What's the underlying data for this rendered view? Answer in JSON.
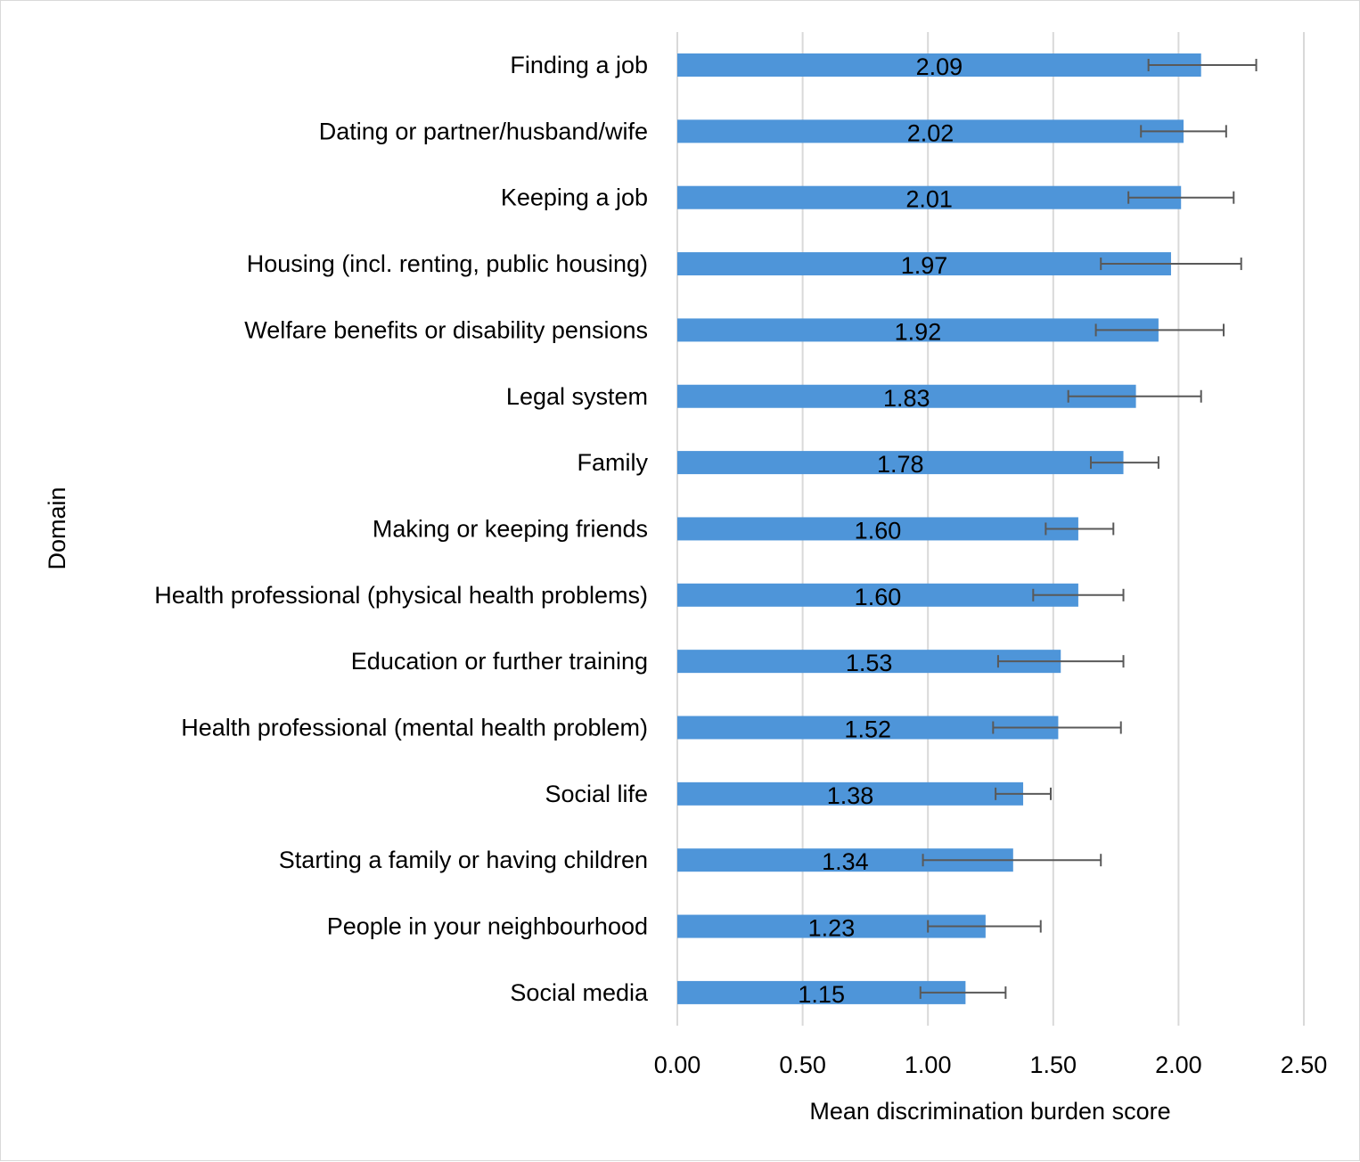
{
  "chart_data": {
    "type": "bar",
    "orientation": "horizontal",
    "title": "",
    "xlabel": "Mean discrimination burden score",
    "ylabel": "Domain",
    "xlim": [
      0,
      2.5
    ],
    "x_ticks": [
      "0.00",
      "0.50",
      "1.00",
      "1.50",
      "2.00",
      "2.50"
    ],
    "grid": "vertical",
    "bar_color": "#4e95d9",
    "error_color": "#595959",
    "grid_color": "#d9d9d9",
    "categories": [
      "Finding a job",
      "Dating or partner/husband/wife",
      "Keeping a job",
      "Housing (incl. renting, public housing)",
      "Welfare benefits or disability pensions",
      "Legal system",
      "Family",
      "Making or keeping friends",
      "Health professional (physical health problems)",
      "Education or further training",
      "Health professional (mental health problem)",
      "Social life",
      "Starting a family or having children",
      "People in your neighbourhood",
      "Social media"
    ],
    "values": [
      2.09,
      2.02,
      2.01,
      1.97,
      1.92,
      1.83,
      1.78,
      1.6,
      1.6,
      1.53,
      1.52,
      1.38,
      1.34,
      1.23,
      1.15
    ],
    "value_labels": [
      "2.09",
      "2.02",
      "2.01",
      "1.97",
      "1.92",
      "1.83",
      "1.78",
      "1.60",
      "1.60",
      "1.53",
      "1.52",
      "1.38",
      "1.34",
      "1.23",
      "1.15"
    ],
    "error_low": [
      1.88,
      1.85,
      1.8,
      1.69,
      1.67,
      1.56,
      1.65,
      1.47,
      1.42,
      1.28,
      1.26,
      1.27,
      0.98,
      1.0,
      0.97
    ],
    "error_high": [
      2.31,
      2.19,
      2.22,
      2.25,
      2.18,
      2.09,
      1.92,
      1.74,
      1.78,
      1.78,
      1.77,
      1.49,
      1.69,
      1.45,
      1.31
    ]
  }
}
